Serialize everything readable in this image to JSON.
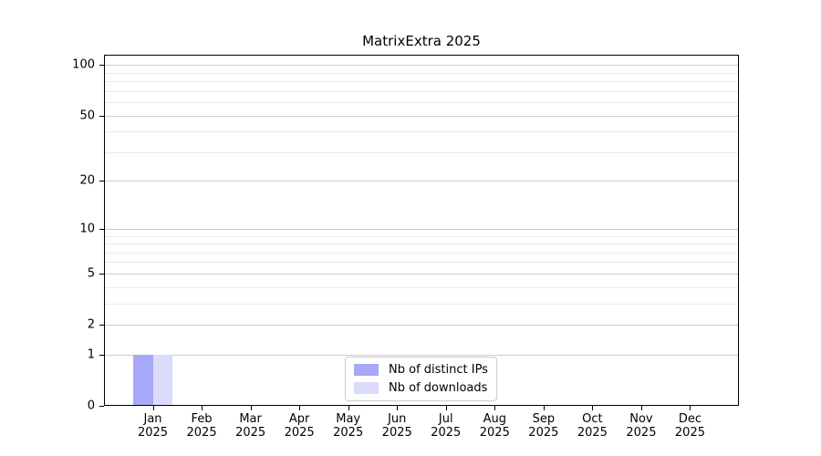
{
  "chart_data": {
    "type": "bar",
    "title": "MatrixExtra 2025",
    "x_tick_labels": [
      {
        "month": "Jan",
        "year": "2025"
      },
      {
        "month": "Feb",
        "year": "2025"
      },
      {
        "month": "Mar",
        "year": "2025"
      },
      {
        "month": "Apr",
        "year": "2025"
      },
      {
        "month": "May",
        "year": "2025"
      },
      {
        "month": "Jun",
        "year": "2025"
      },
      {
        "month": "Jul",
        "year": "2025"
      },
      {
        "month": "Aug",
        "year": "2025"
      },
      {
        "month": "Sep",
        "year": "2025"
      },
      {
        "month": "Oct",
        "year": "2025"
      },
      {
        "month": "Nov",
        "year": "2025"
      },
      {
        "month": "Dec",
        "year": "2025"
      }
    ],
    "series": [
      {
        "name": "Nb of distinct IPs",
        "color": "#a8a8f8",
        "values": [
          1,
          0,
          0,
          0,
          0,
          0,
          0,
          0,
          0,
          0,
          0,
          0
        ]
      },
      {
        "name": "Nb of downloads",
        "color": "#dbdbfa",
        "values": [
          1,
          0,
          0,
          0,
          0,
          0,
          0,
          0,
          0,
          0,
          0,
          0
        ]
      }
    ],
    "y_scale": "log10(1+y)",
    "ylim": [
      0,
      115
    ],
    "y_major_ticks": [
      0,
      1,
      2,
      5,
      10,
      20,
      50,
      100
    ],
    "y_minor_gridlines": [
      3,
      4,
      6,
      7,
      8,
      9,
      30,
      40,
      60,
      70,
      80,
      90
    ],
    "grid": "horizontal",
    "legend_position": "inside lower center",
    "bar_width_fraction": 0.4,
    "colors": {
      "background": "#ffffff",
      "axis": "#000000",
      "major_grid": "#cccccc",
      "minor_grid": "#eaeaea",
      "text": "#000000"
    }
  }
}
